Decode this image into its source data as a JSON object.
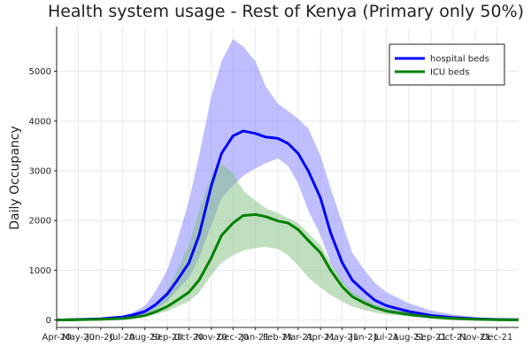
{
  "chart_data": {
    "type": "line",
    "title": "Health system usage - Rest of Kenya (Primary only 50%)",
    "xlabel": "",
    "ylabel": "Daily Occupancy",
    "xlim": [
      "2020-04-01",
      "2021-12-31"
    ],
    "ylim": [
      -150,
      5900
    ],
    "grid": true,
    "legend_position": "top-right",
    "x_tick_labels": [
      "Apr-20",
      "May-20",
      "Jun-20",
      "Jul-20",
      "Aug-20",
      "Sep-20",
      "Oct-20",
      "Nov-20",
      "Dec-20",
      "Jan-21",
      "Feb-21",
      "Mar-21",
      "Apr-21",
      "May-21",
      "Jun-21",
      "Jul-21",
      "Aug-21",
      "Sep-21",
      "Oct-21",
      "Nov-21",
      "Dec-21"
    ],
    "y_ticks": [
      0,
      1000,
      2000,
      3000,
      4000,
      5000
    ],
    "x": [
      "2020-04-01",
      "2020-05-01",
      "2020-06-01",
      "2020-07-01",
      "2020-07-15",
      "2020-08-01",
      "2020-08-15",
      "2020-09-01",
      "2020-09-15",
      "2020-10-01",
      "2020-10-15",
      "2020-11-01",
      "2020-11-15",
      "2020-12-01",
      "2020-12-15",
      "2021-01-01",
      "2021-01-15",
      "2021-02-01",
      "2021-02-15",
      "2021-03-01",
      "2021-03-15",
      "2021-04-01",
      "2021-04-15",
      "2021-05-01",
      "2021-05-15",
      "2021-06-01",
      "2021-06-15",
      "2021-07-01",
      "2021-08-01",
      "2021-09-01",
      "2021-10-01",
      "2021-11-01",
      "2021-12-01",
      "2021-12-31"
    ],
    "series": [
      {
        "name": "hospital beds",
        "color": "#0000ff",
        "band_color": "#8080ff",
        "values": [
          0,
          10,
          25,
          60,
          100,
          170,
          300,
          520,
          800,
          1150,
          1700,
          2700,
          3350,
          3700,
          3800,
          3750,
          3680,
          3650,
          3550,
          3350,
          3000,
          2450,
          1750,
          1150,
          800,
          570,
          400,
          290,
          170,
          90,
          50,
          25,
          10,
          5
        ],
        "lower": [
          0,
          5,
          15,
          40,
          70,
          120,
          200,
          380,
          600,
          850,
          1250,
          1900,
          2450,
          2700,
          2900,
          3050,
          3150,
          3250,
          3100,
          2750,
          2200,
          1700,
          1150,
          750,
          520,
          380,
          260,
          180,
          100,
          50,
          25,
          10,
          5,
          2
        ],
        "upper": [
          0,
          20,
          40,
          90,
          150,
          280,
          560,
          1000,
          1600,
          2400,
          3300,
          4500,
          5200,
          5650,
          5500,
          5200,
          4700,
          4350,
          4200,
          4050,
          3850,
          3300,
          2650,
          1950,
          1350,
          1000,
          750,
          560,
          340,
          190,
          110,
          60,
          30,
          15
        ]
      },
      {
        "name": "ICU beds",
        "color": "#008000",
        "band_color": "#80c080",
        "values": [
          0,
          5,
          15,
          30,
          50,
          90,
          160,
          270,
          400,
          560,
          800,
          1250,
          1700,
          1950,
          2100,
          2120,
          2080,
          1990,
          1950,
          1820,
          1600,
          1350,
          1000,
          670,
          470,
          340,
          250,
          180,
          110,
          60,
          30,
          15,
          5,
          2
        ],
        "lower": [
          0,
          2,
          8,
          20,
          35,
          60,
          110,
          180,
          270,
          380,
          550,
          900,
          1150,
          1300,
          1400,
          1450,
          1470,
          1430,
          1300,
          1100,
          850,
          650,
          500,
          370,
          270,
          200,
          150,
          110,
          70,
          35,
          18,
          8,
          3,
          1
        ],
        "upper": [
          0,
          10,
          25,
          50,
          90,
          170,
          330,
          600,
          1000,
          1500,
          2200,
          2900,
          3150,
          2950,
          2600,
          2400,
          2250,
          2150,
          2050,
          1950,
          1750,
          1500,
          1150,
          800,
          560,
          420,
          320,
          240,
          150,
          80,
          40,
          20,
          10,
          5
        ]
      }
    ]
  }
}
